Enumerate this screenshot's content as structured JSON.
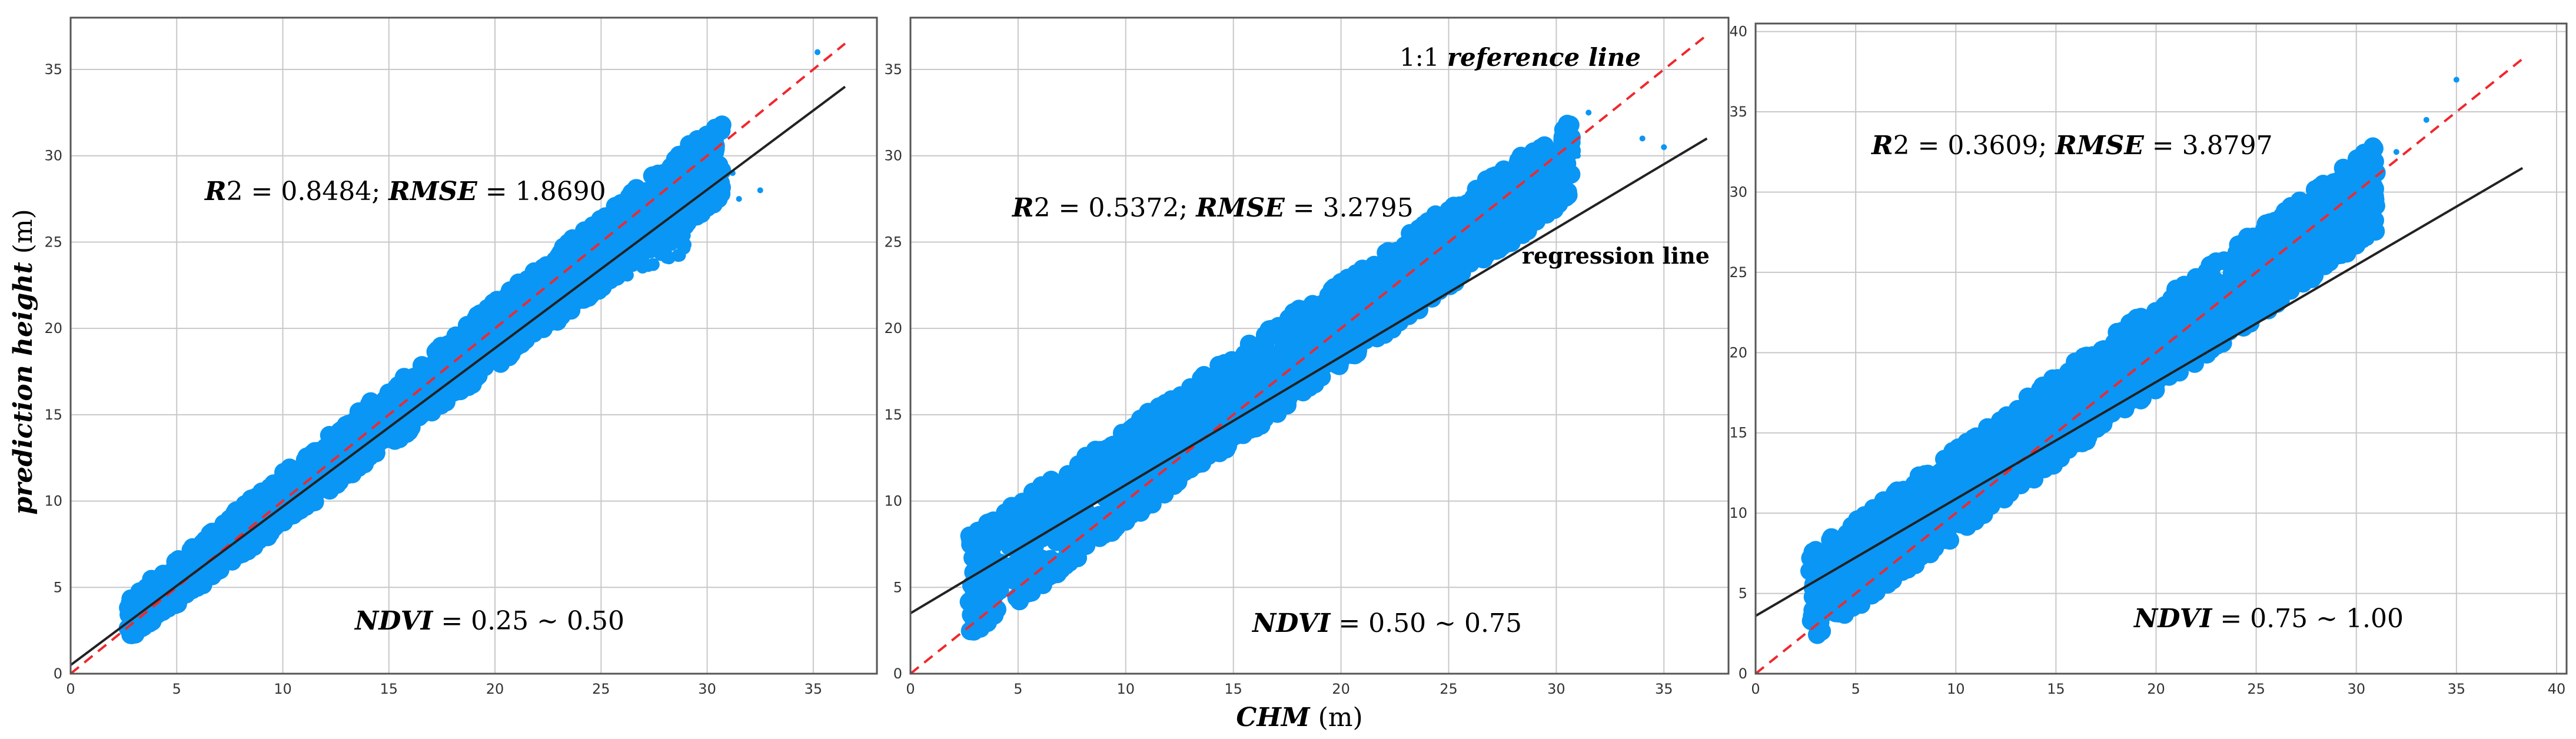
{
  "figure": {
    "ylabel_bold": "prediction height",
    "ylabel_unit": " (m)",
    "xlabel_bold": "CHM",
    "xlabel_unit": " (m)"
  },
  "chart_data": [
    {
      "type": "scatter",
      "panel": "NDVI 0.25-0.50",
      "xlim": [
        0,
        38
      ],
      "ylim": [
        0,
        38
      ],
      "xticks": [
        0,
        5,
        10,
        15,
        20,
        25,
        30,
        35
      ],
      "yticks": [
        0,
        5,
        10,
        15,
        20,
        25,
        30,
        35
      ],
      "grid": true,
      "scatter_color": "#0a96f5",
      "point_count": 1400,
      "band": {
        "x": [
          2.7,
          30.7
        ],
        "lower_at": [
          1.9,
          27.5
        ],
        "upper_at": [
          4.4,
          32.2
        ]
      },
      "branch": {
        "x": [
          23,
          29
        ],
        "y_at": [
          22.5,
          25.0
        ]
      },
      "outliers": [
        [
          31.5,
          27.5
        ],
        [
          32.5,
          28.0
        ],
        [
          35.2,
          36.0
        ],
        [
          31.2,
          29.0
        ]
      ],
      "regression_line": {
        "color": "#222222",
        "x": [
          0,
          36.5
        ],
        "y": [
          0.5,
          34.0
        ]
      },
      "reference_line": {
        "color": "#f0282d",
        "x": [
          0,
          36.5
        ],
        "y": [
          0,
          36.5
        ]
      },
      "r2_label_bold": "R",
      "r2_label_rest": "2 = 0.8484; ",
      "rmse_label_bold": "RMSE",
      "rmse_label_rest": " = 1.8690",
      "ndvi_label_bold": "NDVI",
      "ndvi_label_rest": " = 0.25 ~ 0.50"
    },
    {
      "type": "scatter",
      "panel": "NDVI 0.50-0.75",
      "xlim": [
        0,
        38
      ],
      "ylim": [
        0,
        38
      ],
      "xticks": [
        0,
        5,
        10,
        15,
        20,
        25,
        30,
        35
      ],
      "yticks": [
        0,
        5,
        10,
        15,
        20,
        25,
        30,
        35
      ],
      "grid": true,
      "scatter_color": "#0a96f5",
      "point_count": 1400,
      "band": {
        "x": [
          2.7,
          30.7
        ],
        "lower_at": [
          2.0,
          27.5
        ],
        "upper_at": [
          8.0,
          32.0
        ]
      },
      "branch": {
        "x": [
          25,
          30
        ],
        "y_at": [
          25.0,
          27.5
        ]
      },
      "outliers": [
        [
          31.0,
          30.0
        ],
        [
          34.0,
          31.0
        ],
        [
          35.0,
          30.5
        ],
        [
          31.5,
          32.5
        ]
      ],
      "regression_line": {
        "color": "#222222",
        "x": [
          0,
          37
        ],
        "y": [
          3.5,
          31.0
        ]
      },
      "reference_line": {
        "color": "#f0282d",
        "x": [
          0,
          37
        ],
        "y": [
          0,
          37
        ]
      },
      "r2_label_bold": "R",
      "r2_label_rest": "2 = 0.5372; ",
      "rmse_label_bold": "RMSE",
      "rmse_label_rest": " = 3.2795",
      "ndvi_label_bold": "NDVI",
      "ndvi_label_rest": " = 0.50 ~ 0.75",
      "reference_line_label_plain": "1:1 ",
      "reference_line_label_bold": "reference line",
      "regression_line_label": "regression line"
    },
    {
      "type": "scatter",
      "panel": "NDVI 0.75-1.00",
      "xlim": [
        0,
        40.5
      ],
      "ylim": [
        0,
        40.5
      ],
      "xticks": [
        0,
        5,
        10,
        15,
        20,
        25,
        30,
        35,
        40
      ],
      "yticks": [
        0,
        5,
        10,
        15,
        20,
        25,
        30,
        35,
        40
      ],
      "grid": true,
      "scatter_color": "#0a96f5",
      "point_count": 1400,
      "band": {
        "x": [
          2.7,
          31.0
        ],
        "lower_at": [
          2.0,
          27.5
        ],
        "upper_at": [
          7.5,
          33.0
        ]
      },
      "branch": {
        "x": [
          26,
          31
        ],
        "y_at": [
          26.0,
          28.0
        ]
      },
      "outliers": [
        [
          33.5,
          34.5
        ],
        [
          35.0,
          37.0
        ],
        [
          32.0,
          32.5
        ]
      ],
      "regression_line": {
        "color": "#222222",
        "x": [
          0,
          38.3
        ],
        "y": [
          3.6,
          31.5
        ]
      },
      "reference_line": {
        "color": "#f0282d",
        "x": [
          0,
          38.3
        ],
        "y": [
          0,
          38.3
        ]
      },
      "r2_label_bold": "R",
      "r2_label_rest": "2 = 0.3609; ",
      "rmse_label_bold": "RMSE",
      "rmse_label_rest": " = 3.8797",
      "ndvi_label_bold": "NDVI",
      "ndvi_label_rest": " = 0.75 ~ 1.00"
    }
  ]
}
